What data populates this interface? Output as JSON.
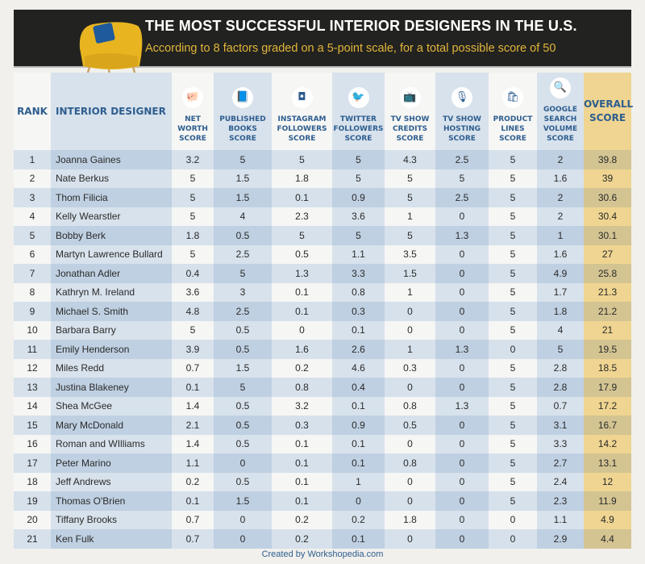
{
  "header": {
    "title": "THE MOST SUCCESSFUL INTERIOR DESIGNERS IN THE U.S.",
    "subtitle": "According to 8 factors graded on a 5-point scale, for a total possible score of 50"
  },
  "footer": {
    "credit": "Created by Workshopedia.com"
  },
  "colors": {
    "header_text": "#2d5d8f",
    "overall_column": "#efd591",
    "banner": "#222220",
    "subtitle": "#e2b63a"
  },
  "chart_data": {
    "type": "table",
    "title": "THE MOST SUCCESSFUL INTERIOR DESIGNERS IN THE U.S.",
    "columns": [
      {
        "label": "RANK",
        "icon": ""
      },
      {
        "label": "INTERIOR DESIGNER",
        "icon": ""
      },
      {
        "label": "NET WORTH SCORE",
        "icon": "piggy-bank-icon"
      },
      {
        "label": "PUBLISHED BOOKS SCORE",
        "icon": "book-icon"
      },
      {
        "label": "INSTAGRAM FOLLOWERS SCORE",
        "icon": "instagram-icon"
      },
      {
        "label": "TWITTER FOLLOWERS SCORE",
        "icon": "twitter-icon"
      },
      {
        "label": "TV SHOW CREDITS SCORE",
        "icon": "tv-icon"
      },
      {
        "label": "TV SHOW HOSTING SCORE",
        "icon": "microphone-icon"
      },
      {
        "label": "PRODUCT LINES SCORE",
        "icon": "shopping-bag-icon"
      },
      {
        "label": "GOOGLE SEARCH VOLUME SCORE",
        "icon": "search-icon"
      },
      {
        "label": "OVERALL SCORE",
        "icon": ""
      }
    ],
    "rows": [
      [
        "1",
        "Joanna Gaines",
        "3.2",
        "5",
        "5",
        "5",
        "4.3",
        "2.5",
        "5",
        "2",
        "39.8"
      ],
      [
        "2",
        "Nate Berkus",
        "5",
        "1.5",
        "1.8",
        "5",
        "5",
        "5",
        "5",
        "1.6",
        "39"
      ],
      [
        "3",
        "Thom Filicia",
        "5",
        "1.5",
        "0.1",
        "0.9",
        "5",
        "2.5",
        "5",
        "2",
        "30.6"
      ],
      [
        "4",
        "Kelly Wearstler",
        "5",
        "4",
        "2.3",
        "3.6",
        "1",
        "0",
        "5",
        "2",
        "30.4"
      ],
      [
        "5",
        "Bobby Berk",
        "1.8",
        "0.5",
        "5",
        "5",
        "5",
        "1.3",
        "5",
        "1",
        "30.1"
      ],
      [
        "6",
        "Martyn Lawrence Bullard",
        "5",
        "2.5",
        "0.5",
        "1.1",
        "3.5",
        "0",
        "5",
        "1.6",
        "27"
      ],
      [
        "7",
        "Jonathan Adler",
        "0.4",
        "5",
        "1.3",
        "3.3",
        "1.5",
        "0",
        "5",
        "4.9",
        "25.8"
      ],
      [
        "8",
        "Kathryn M. Ireland",
        "3.6",
        "3",
        "0.1",
        "0.8",
        "1",
        "0",
        "5",
        "1.7",
        "21.3"
      ],
      [
        "9",
        "Michael S. Smith",
        "4.8",
        "2.5",
        "0.1",
        "0.3",
        "0",
        "0",
        "5",
        "1.8",
        "21.2"
      ],
      [
        "10",
        "Barbara Barry",
        "5",
        "0.5",
        "0",
        "0.1",
        "0",
        "0",
        "5",
        "4",
        "21"
      ],
      [
        "11",
        "Emily Henderson",
        "3.9",
        "0.5",
        "1.6",
        "2.6",
        "1",
        "1.3",
        "0",
        "5",
        "19.5"
      ],
      [
        "12",
        "Miles Redd",
        "0.7",
        "1.5",
        "0.2",
        "4.6",
        "0.3",
        "0",
        "5",
        "2.8",
        "18.5"
      ],
      [
        "13",
        "Justina Blakeney",
        "0.1",
        "5",
        "0.8",
        "0.4",
        "0",
        "0",
        "5",
        "2.8",
        "17.9"
      ],
      [
        "14",
        "Shea McGee",
        "1.4",
        "0.5",
        "3.2",
        "0.1",
        "0.8",
        "1.3",
        "5",
        "0.7",
        "17.2"
      ],
      [
        "15",
        "Mary McDonald",
        "2.1",
        "0.5",
        "0.3",
        "0.9",
        "0.5",
        "0",
        "5",
        "3.1",
        "16.7"
      ],
      [
        "16",
        "Roman and WIlliams",
        "1.4",
        "0.5",
        "0.1",
        "0.1",
        "0",
        "0",
        "5",
        "3.3",
        "14.2"
      ],
      [
        "17",
        "Peter Marino",
        "1.1",
        "0",
        "0.1",
        "0.1",
        "0.8",
        "0",
        "5",
        "2.7",
        "13.1"
      ],
      [
        "18",
        "Jeff Andrews",
        "0.2",
        "0.5",
        "0.1",
        "1",
        "0",
        "0",
        "5",
        "2.4",
        "12"
      ],
      [
        "19",
        "Thomas O'Brien",
        "0.1",
        "1.5",
        "0.1",
        "0",
        "0",
        "0",
        "5",
        "2.3",
        "11.9"
      ],
      [
        "20",
        "Tiffany Brooks",
        "0.7",
        "0",
        "0.2",
        "0.2",
        "1.8",
        "0",
        "0",
        "1.1",
        "4.9"
      ],
      [
        "21",
        "Ken Fulk",
        "0.7",
        "0",
        "0.2",
        "0.1",
        "0",
        "0",
        "0",
        "2.9",
        "4.4"
      ]
    ]
  }
}
